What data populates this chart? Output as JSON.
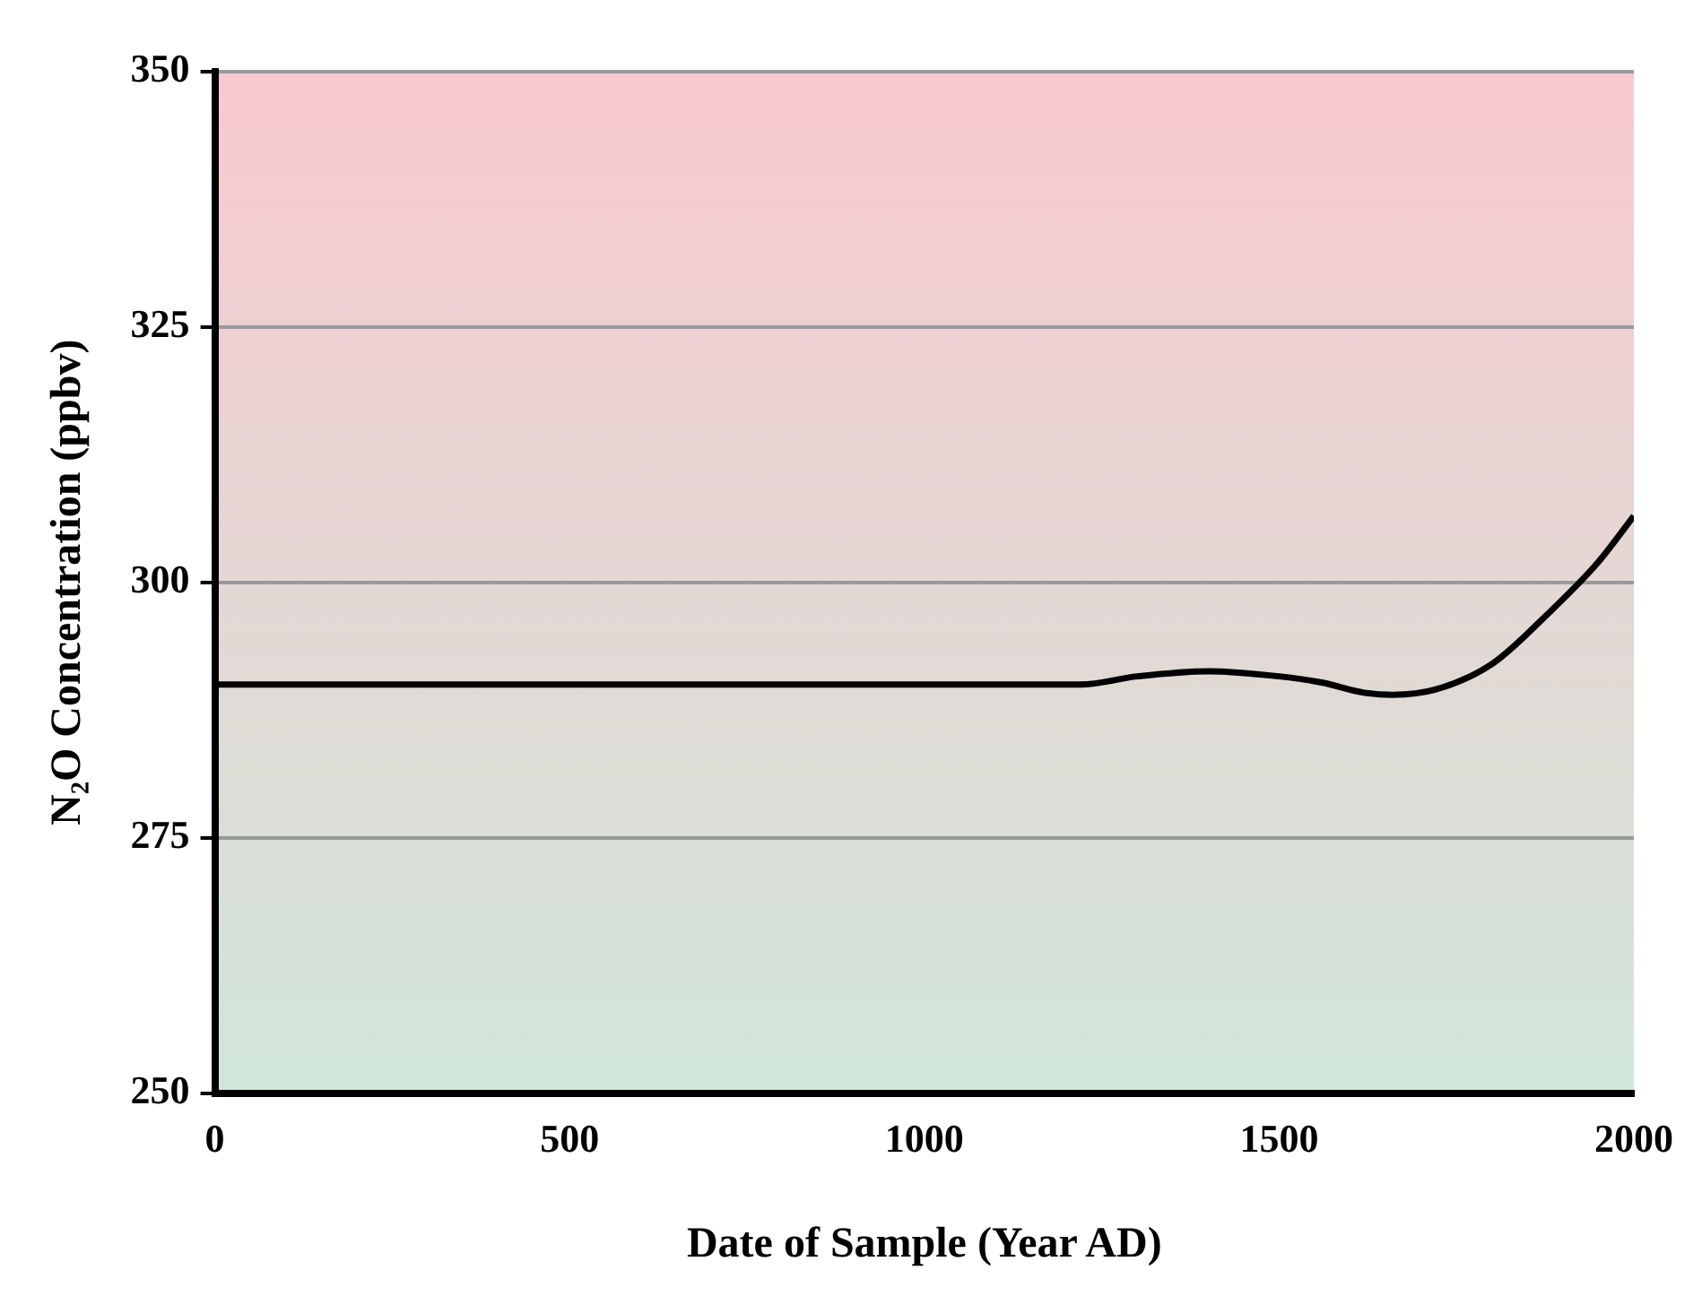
{
  "chart_data": {
    "type": "line",
    "xlabel": "Date of Sample (Year AD)",
    "ylabel": "N₂O Concentration (ppbv)",
    "x": [
      0,
      1220,
      1300,
      1400,
      1500,
      1560,
      1620,
      1660,
      1720,
      1800,
      1880,
      1950,
      2000
    ],
    "series": [
      {
        "color": "#000000",
        "values": [
          290,
          290,
          290.8,
          291.3,
          290.8,
          290.2,
          289.2,
          289,
          289.5,
          292,
          297,
          302,
          306.5
        ]
      }
    ],
    "xlim": [
      0,
      2000
    ],
    "xticks": [
      0,
      500,
      1000,
      1500,
      2000
    ],
    "ylim": [
      250,
      350
    ],
    "yticks": [
      250,
      275,
      300,
      325,
      350
    ],
    "grid": "y",
    "legend": false,
    "marker": "none",
    "line_style": "solid"
  }
}
